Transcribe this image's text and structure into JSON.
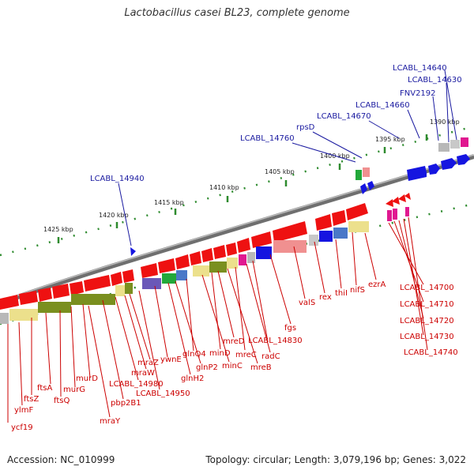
{
  "title": "Lactobacillus casei BL23, complete genome",
  "footer": {
    "accession": "Accession: NC_010999",
    "summary": "Topology: circular; Length: 3,079,196 bp; Genes: 3,022"
  },
  "colors": {
    "backbone": "#7a7a7a",
    "tick": "#2e8b2e",
    "blue_label": "#1a1aa0",
    "red_label": "#cc0000",
    "red": "#ee1111",
    "pink": "#f09090",
    "blue": "#1515e0",
    "olive": "#7a8f1f",
    "khaki": "#ece08c",
    "lightblue": "#4a78c8",
    "violet": "#6a58b8",
    "magenta": "#e01890",
    "gray": "#b8b8b8",
    "green": "#22a83a"
  },
  "scale_labels": [
    "1390 kbp",
    "1395 kbp",
    "1400 kbp",
    "1405 kbp",
    "1410 kbp",
    "1415 kbp",
    "1420 kbp",
    "1425 kbp"
  ],
  "top_labels": [
    "LCABL_14640",
    "LCABL_14630",
    "FNV2192",
    "LCABL_14660",
    "LCABL_14670",
    "rpsD",
    "LCABL_14760",
    "LCABL_14940"
  ],
  "bottom_labels": [
    "ycf19",
    "ylmF",
    "ftsZ",
    "ftsA",
    "ftsQ",
    "murG",
    "murD",
    "mraY",
    "pbp2B1",
    "LCABL_14980",
    "mraW",
    "mraZ",
    "LCABL_14950",
    "ywnE",
    "glnH2",
    "glnP2",
    "glnQ4",
    "minC",
    "minD",
    "mreD",
    "mreB",
    "mreC",
    "radC",
    "LCABL_14830",
    "fgs",
    "valS",
    "rex",
    "thiI",
    "nifS",
    "ezrA"
  ],
  "right_labels": [
    "LCABL_14700",
    "LCABL_14710",
    "LCABL_14720",
    "LCABL_14730",
    "LCABL_14740"
  ]
}
